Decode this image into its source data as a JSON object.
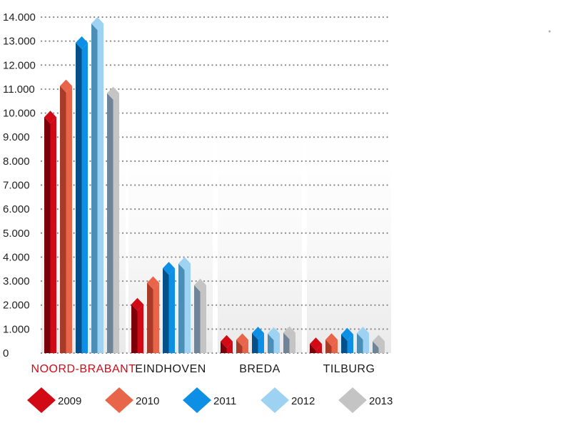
{
  "chart_data": {
    "type": "bar",
    "categories": [
      "NOORD-BRABANT",
      "EINDHOVEN",
      "BREDA",
      "TILBURG"
    ],
    "highlight_category": "NOORD-BRABANT",
    "highlight_color": "#d10a16",
    "ylim": [
      0,
      14000
    ],
    "yticks": [
      "0",
      "1.000",
      "2.000",
      "3.000",
      "4.000",
      "5.000",
      "6.000",
      "7.000",
      "8.000",
      "9.000",
      "10.000",
      "11.000",
      "12.000",
      "13.000",
      "14.000"
    ],
    "grid": "horizontal dotted",
    "legend_position": "bottom",
    "series": [
      {
        "name": "2009",
        "color": "#d10a16",
        "dark": "#7a0009",
        "values": [
          10100,
          2300,
          750,
          650
        ]
      },
      {
        "name": "2010",
        "color": "#e8654a",
        "dark": "#a83a28",
        "values": [
          11400,
          3200,
          820,
          830
        ]
      },
      {
        "name": "2011",
        "color": "#0d8fe6",
        "dark": "#06508a",
        "values": [
          13200,
          3800,
          1100,
          1050
        ]
      },
      {
        "name": "2012",
        "color": "#9dd2f2",
        "dark": "#4b8fb6",
        "values": [
          14000,
          4000,
          1080,
          1100
        ]
      },
      {
        "name": "2013",
        "color": "#c4c4c4",
        "dark": "#6f8496",
        "values": [
          11100,
          3100,
          1120,
          760
        ]
      }
    ]
  }
}
